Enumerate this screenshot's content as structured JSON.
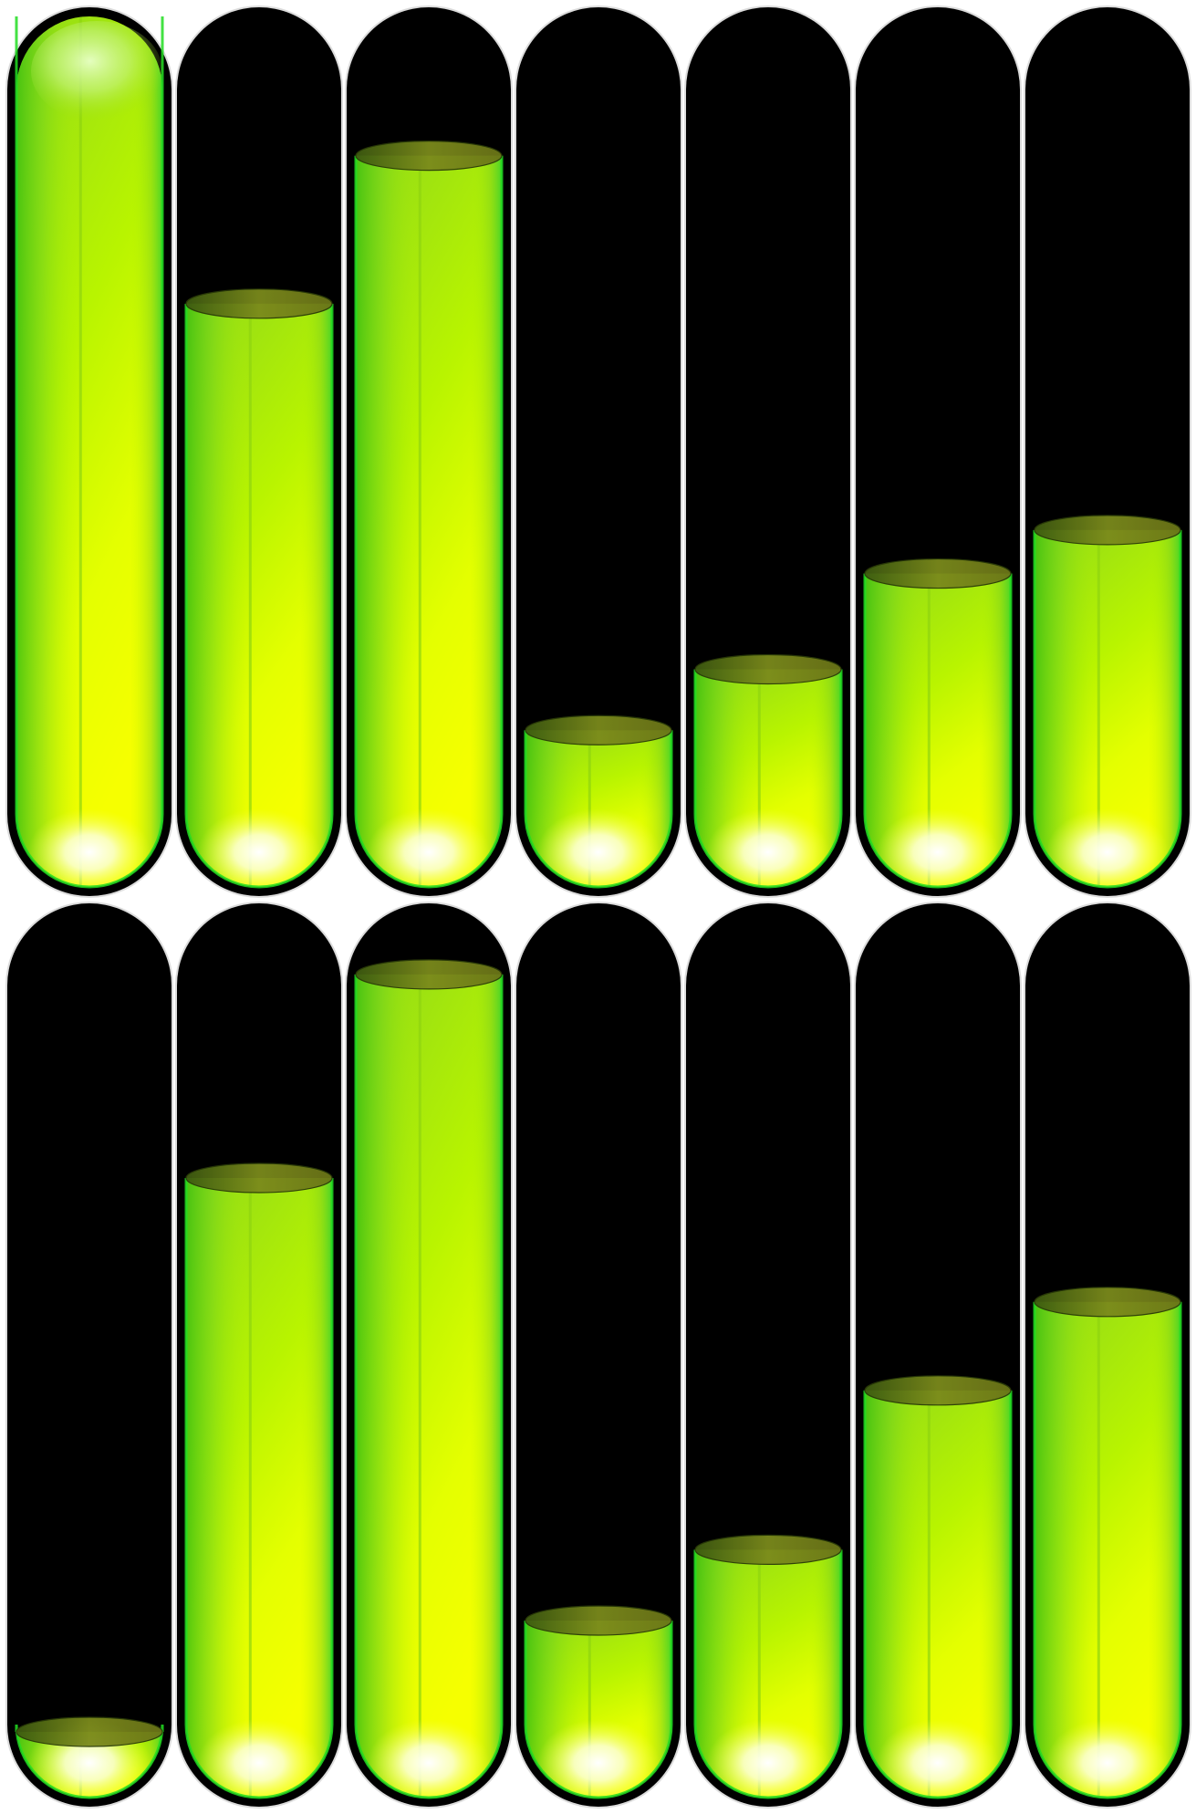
{
  "colors": {
    "background": "#ffffff",
    "tube_body": "#000000",
    "tube_rim": "#0a0a0a",
    "tube_edge_highlight": "#e8e8e8",
    "liquid_top": "#9adf1a",
    "liquid_mid": "#c8ff00",
    "liquid_bottom": "#f4ff00",
    "liquid_edge": "#22dd22",
    "glow_center": "#ffffff",
    "glow_mid": "#f8ffb0",
    "surface": "#7a8a1e",
    "surface_shadow": "#4b5a10"
  },
  "rows": [
    {
      "tubes": [
        {
          "fill": 1.0,
          "cap": true
        },
        {
          "fill": 0.67,
          "cap": false
        },
        {
          "fill": 0.84,
          "cap": false
        },
        {
          "fill": 0.18,
          "cap": false
        },
        {
          "fill": 0.25,
          "cap": false
        },
        {
          "fill": 0.36,
          "cap": false
        },
        {
          "fill": 0.41,
          "cap": false
        }
      ]
    },
    {
      "tubes": [
        {
          "fill": 0.04,
          "cap": false
        },
        {
          "fill": 0.7,
          "cap": false
        },
        {
          "fill": 0.93,
          "cap": false
        },
        {
          "fill": 0.2,
          "cap": false
        },
        {
          "fill": 0.28,
          "cap": false
        },
        {
          "fill": 0.46,
          "cap": false
        },
        {
          "fill": 0.56,
          "cap": false
        }
      ]
    }
  ]
}
